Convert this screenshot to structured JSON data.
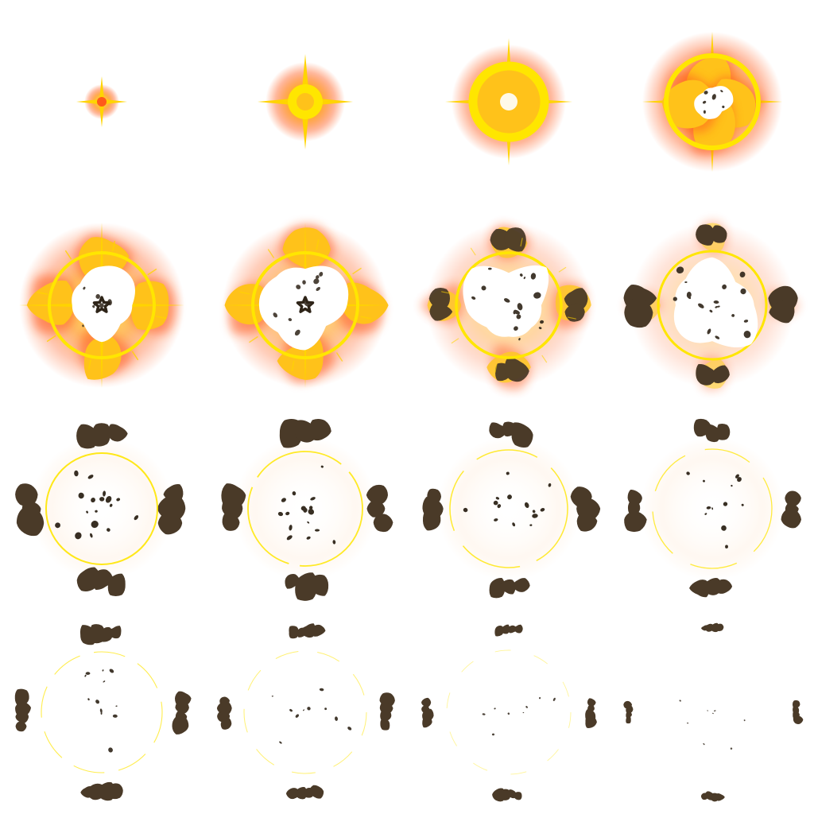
{
  "sprite_sheet": {
    "grid": {
      "columns": 4,
      "rows": 4
    },
    "palette": {
      "background": "#ffffff",
      "glow_outer": "#ff5a1a",
      "glow_mid": "#ff9a1f",
      "flame": "#ffc21a",
      "ring": "#ffe600",
      "spark": "#ffd400",
      "smoke": "#4a3a28",
      "smoke_shadow": "#2e2418",
      "core": "#ffffff"
    },
    "frames": [
      {
        "index": 1,
        "stage": "spark"
      },
      {
        "index": 2,
        "stage": "flash"
      },
      {
        "index": 3,
        "stage": "fireball"
      },
      {
        "index": 4,
        "stage": "burst"
      },
      {
        "index": 5,
        "stage": "expansion"
      },
      {
        "index": 6,
        "stage": "expansion"
      },
      {
        "index": 7,
        "stage": "smoke-forming"
      },
      {
        "index": 8,
        "stage": "smoke-forming"
      },
      {
        "index": 9,
        "stage": "smoke"
      },
      {
        "index": 10,
        "stage": "smoke"
      },
      {
        "index": 11,
        "stage": "smoke-dispersing"
      },
      {
        "index": 12,
        "stage": "smoke-dispersing"
      },
      {
        "index": 13,
        "stage": "fade"
      },
      {
        "index": 14,
        "stage": "fade"
      },
      {
        "index": 15,
        "stage": "fade"
      },
      {
        "index": 16,
        "stage": "fade-end"
      }
    ]
  }
}
